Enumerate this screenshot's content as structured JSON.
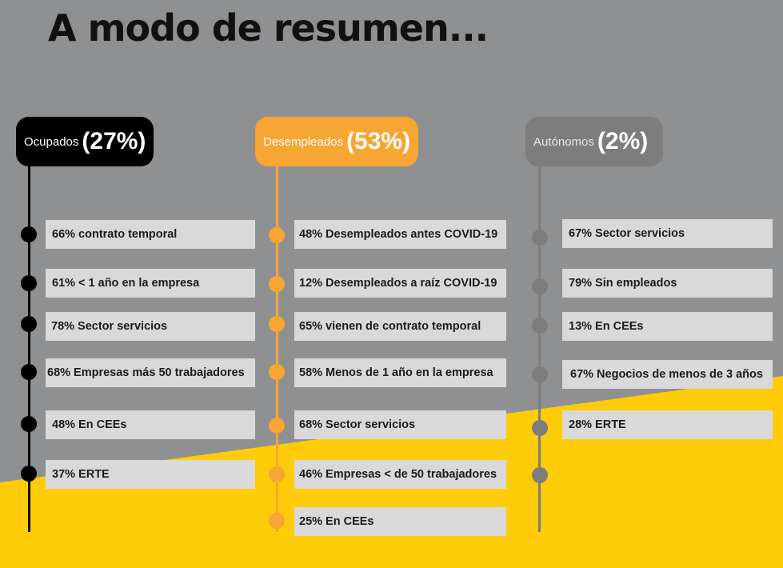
{
  "title": "A modo de resumen...",
  "colors": {
    "background_gray": "#8f9092",
    "background_yellow": "#ffcc0a",
    "ocupados": "#000000",
    "desempleados": "#f7a533",
    "autonomos": "#7d7d7e",
    "item_box": "#d9d9da"
  },
  "columns": [
    {
      "label": "Ocupados",
      "percent": "(27%)",
      "items": [
        "66% contrato temporal",
        "61% < 1 año en la empresa",
        "78% Sector servicios",
        "68% Empresas más 50 trabajadores",
        "48% En CEEs",
        "37% ERTE"
      ]
    },
    {
      "label": "Desempleados",
      "percent": "(53%)",
      "items": [
        "48% Desempleados antes COVID-19",
        "12% Desempleados a raíz COVID-19",
        "65% vienen de contrato temporal",
        "58% Menos de 1 año en la empresa",
        "68% Sector servicios",
        "46% Empresas < de 50 trabajadores",
        "25% En CEEs"
      ]
    },
    {
      "label": "Autónomos",
      "percent": "(2%)",
      "items": [
        "67% Sector servicios",
        "79% Sin empleados",
        "13% En CEEs",
        "67% Negocios de menos de 3 años",
        "28% ERTE"
      ]
    }
  ]
}
